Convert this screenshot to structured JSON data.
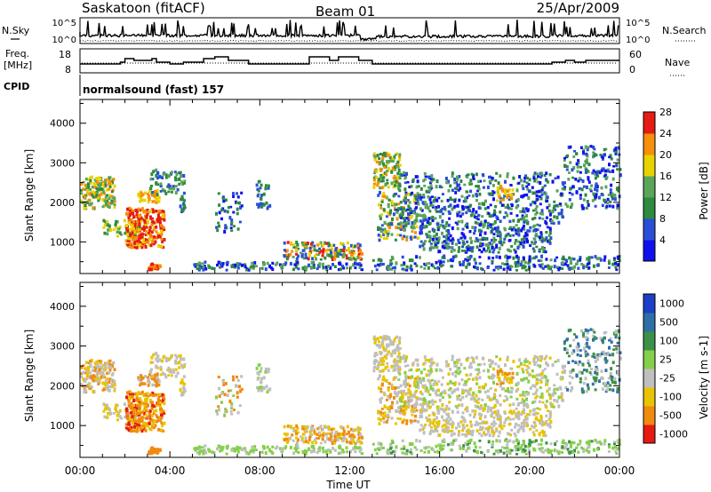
{
  "header": {
    "station": "Saskatoon (fitACF)",
    "beam": "Beam 01",
    "date": "25/Apr/2009"
  },
  "chart_data": [
    {
      "type": "line",
      "panel": "noise",
      "left_label": "N.Sky",
      "right_label": "N.Search",
      "left_ticks": [
        "10^5",
        "10^0"
      ],
      "right_ticks": [
        "10^5",
        "10^0"
      ]
    },
    {
      "type": "line",
      "panel": "frequency",
      "left_label_line1": "Freq.",
      "left_label_line2": "[MHz]",
      "right_label": "Nave",
      "left_ticks": [
        18,
        8
      ],
      "right_ticks": [
        60,
        0
      ],
      "freq_steps": [
        [
          0.0,
          13
        ],
        [
          1.8,
          14
        ],
        [
          2.0,
          16
        ],
        [
          2.4,
          15
        ],
        [
          3.2,
          16
        ],
        [
          3.4,
          14
        ],
        [
          4.0,
          13
        ],
        [
          4.6,
          14
        ],
        [
          5.5,
          16
        ],
        [
          6.0,
          17
        ],
        [
          6.6,
          15
        ],
        [
          7.0,
          15
        ],
        [
          7.5,
          13
        ],
        [
          10.2,
          17
        ],
        [
          11.1,
          15
        ],
        [
          11.5,
          17
        ],
        [
          12.4,
          15
        ],
        [
          13.0,
          13
        ],
        [
          21.0,
          14
        ],
        [
          21.6,
          15
        ],
        [
          22.0,
          14
        ],
        [
          22.5,
          15
        ],
        [
          24.0,
          15
        ]
      ]
    },
    {
      "type": "heatmap",
      "panel": "power",
      "cpid_label": "CPID",
      "cpid_text": "normalsound (fast) 157",
      "ylabel": "Slant Range [km]",
      "xlim": [
        0,
        24
      ],
      "ylim": [
        200,
        4600
      ],
      "yticks": [
        1000,
        2000,
        3000,
        4000
      ],
      "colorbar_label": "Power [dB]",
      "colorbar_ticks": [
        4,
        8,
        12,
        16,
        20,
        24,
        28
      ],
      "colorbar_colors": [
        "#1010ee",
        "#2a4fd6",
        "#2e8a3e",
        "#5aa558",
        "#e8d200",
        "#f58f0c",
        "#e51b14"
      ]
    },
    {
      "type": "heatmap",
      "panel": "velocity",
      "ylabel": "Slant Range [km]",
      "xlabel": "Time UT",
      "xlim": [
        0,
        24
      ],
      "ylim": [
        200,
        4600
      ],
      "yticks": [
        1000,
        2000,
        3000,
        4000
      ],
      "xticks": [
        "00:00",
        "04:00",
        "08:00",
        "12:00",
        "16:00",
        "20:00",
        "00:00"
      ],
      "colorbar_label": "Velocity [m s-1]",
      "colorbar_ticks": [
        1000,
        500,
        100,
        25,
        -25,
        -100,
        -500,
        -1000
      ],
      "colorbar_colors": [
        "#1d3ec7",
        "#2e6fa8",
        "#3b9247",
        "#84d04a",
        "#bfbfbf",
        "#e8c400",
        "#f08a10",
        "#e61a12"
      ]
    }
  ],
  "colors": {
    "ground_scatter": "#9a9a9a",
    "axes": "#000000"
  }
}
